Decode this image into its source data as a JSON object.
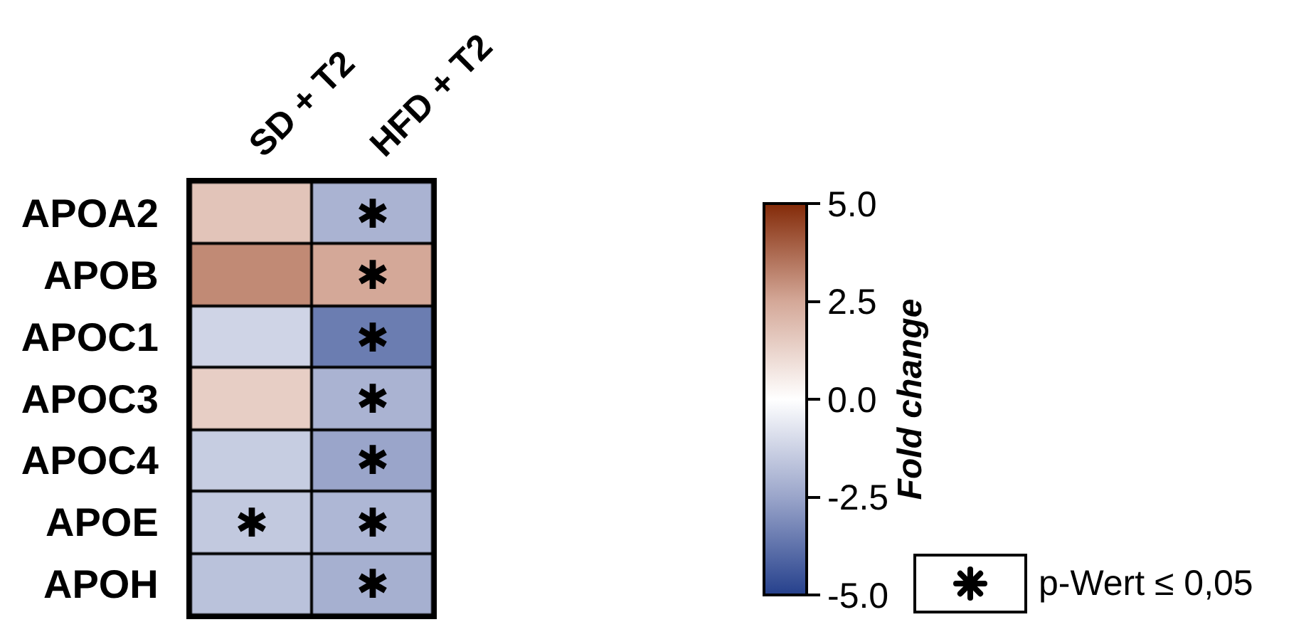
{
  "chart_data": {
    "type": "heatmap",
    "categories": [
      "SD + T2",
      "HFD + T2"
    ],
    "y_categories": [
      "APOA2",
      "APOB",
      "APOC1",
      "APOC3",
      "APOC4",
      "APOE",
      "APOH"
    ],
    "cells": [
      [
        1.7,
        -2.1
      ],
      [
        3.1,
        2.5
      ],
      [
        -1.2,
        -3.5
      ],
      [
        1.4,
        -2.1
      ],
      [
        -1.4,
        -2.5
      ],
      [
        -1.5,
        -2.0
      ],
      [
        -1.7,
        -2.2
      ]
    ],
    "cell_labels": [
      [
        null,
        "✱"
      ],
      [
        null,
        "✱"
      ],
      [
        null,
        "✱"
      ],
      [
        null,
        "✱"
      ],
      [
        null,
        "✱"
      ],
      [
        "✱",
        "✱"
      ],
      [
        null,
        "✱"
      ]
    ],
    "colors": [
      "#25408c",
      "#9aa5ca",
      "#ffffff",
      "#d4a898",
      "#832a08"
    ],
    "clim": [
      -5,
      5
    ],
    "cticks": [
      {
        "value": 5,
        "label": "5.0"
      },
      {
        "value": 2.5,
        "label": "2.5"
      },
      {
        "value": 0,
        "label": "0.0"
      },
      {
        "value": -2.5,
        "label": "-2.5"
      },
      {
        "value": -5,
        "label": "-5.0"
      }
    ],
    "clabel": "Fold change",
    "annotations": [
      "p-Wert ≤ 0,05"
    ]
  }
}
